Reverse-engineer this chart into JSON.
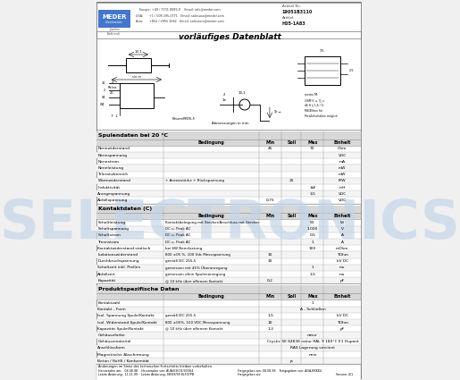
{
  "title": "vorläufiges Datenblatt",
  "article_nr": "19051B3110",
  "article": "H05-1A83",
  "header_blue": "#4477cc",
  "bg_color": "#f0f0f0",
  "page_bg": "#ffffff",
  "table1_title": "Spulendaten bei 20 °C",
  "table2_title": "Kontaktdaten (C)",
  "table3_title": "Produktspezifische Daten",
  "col_headers": [
    "Bedingung",
    "Min",
    "Soll",
    "Max",
    "Einheit"
  ],
  "watermark_color": "#c5d5e8",
  "table_header_bg": "#d8d8d8",
  "table_row_bg": "#f0f0f0",
  "table_border": "#aaaaaa",
  "font_size_title": 4.5,
  "font_size_row": 3.2,
  "font_size_hdr": 3.5
}
